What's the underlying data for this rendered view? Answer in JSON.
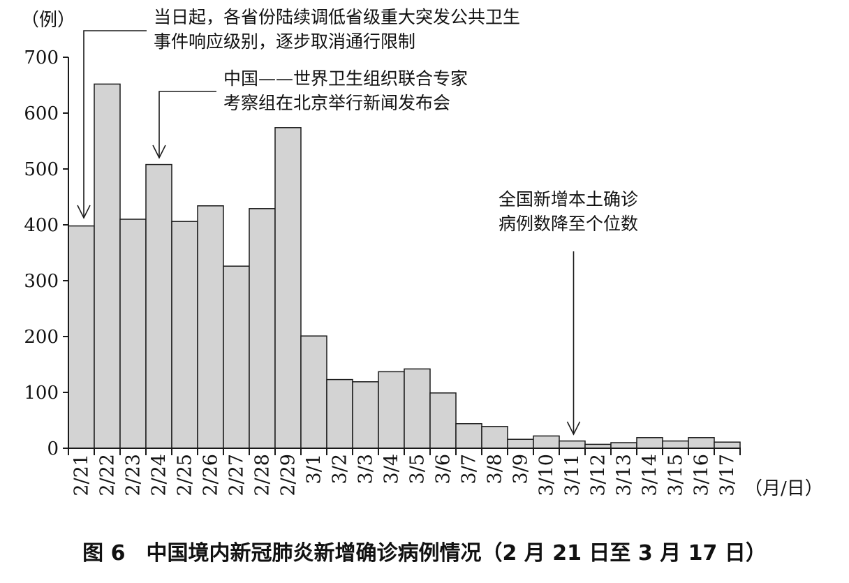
{
  "chart_data": {
    "type": "bar",
    "caption": "图 6　中国境内新冠肺炎新增确诊病例情况（2 月 21 日至 3 月 17 日）",
    "ylabel": "（例）",
    "xlabel": "（月/日）",
    "ylim": [
      0,
      700
    ],
    "yticks": [
      0,
      100,
      200,
      300,
      400,
      500,
      600,
      700
    ],
    "categories": [
      "2/21",
      "2/22",
      "2/23",
      "2/24",
      "2/25",
      "2/26",
      "2/27",
      "2/28",
      "2/29",
      "3/1",
      "3/2",
      "3/3",
      "3/4",
      "3/5",
      "3/6",
      "3/7",
      "3/8",
      "3/9",
      "3/10",
      "3/11",
      "3/12",
      "3/13",
      "3/14",
      "3/15",
      "3/16",
      "3/17"
    ],
    "values": [
      398,
      652,
      410,
      508,
      406,
      434,
      326,
      429,
      574,
      201,
      123,
      119,
      137,
      142,
      99,
      44,
      39,
      16,
      22,
      13,
      7,
      10,
      19,
      13,
      19,
      11
    ],
    "grid": false,
    "annotations": [
      {
        "category": "2/21",
        "lines": [
          "当日起，各省份陆续调低省级重大突发公共卫生",
          "事件响应级别，逐步取消通行限制"
        ]
      },
      {
        "category": "2/24",
        "lines": [
          "中国——世界卫生组织联合专家",
          "考察组在北京举行新闻发布会"
        ]
      },
      {
        "category": "3/11",
        "lines": [
          "全国新增本土确诊",
          "病例数降至个位数"
        ]
      }
    ]
  }
}
